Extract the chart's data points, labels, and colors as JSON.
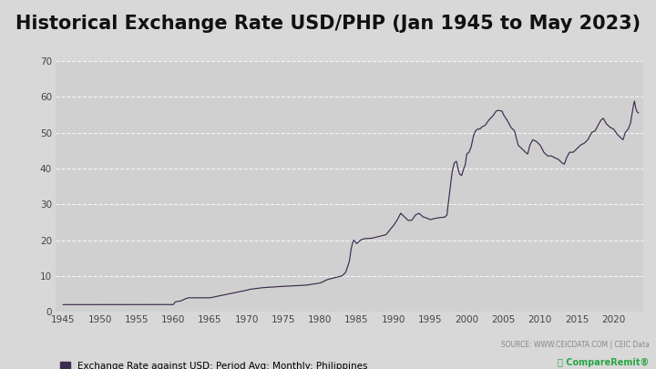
{
  "title": "Historical Exchange Rate USD/PHP (Jan 1945 to May 2023)",
  "title_fontsize": 15,
  "legend_label": "Exchange Rate against USD: Period Avg: Monthly: Philippines",
  "source_text": "SOURCE: WWW.CEICDATA.COM | CEIC Data",
  "line_color": "#3d2b4e",
  "background_color": "#d8d8d8",
  "plot_bg_color": "#d0d0d0",
  "ylim": [
    0,
    70
  ],
  "yticks": [
    0,
    10,
    20,
    30,
    40,
    50,
    60,
    70
  ],
  "xlim_start": 1944,
  "xlim_end": 2024,
  "xticks": [
    1945,
    1950,
    1955,
    1960,
    1965,
    1970,
    1975,
    1980,
    1985,
    1990,
    1995,
    2000,
    2005,
    2010,
    2015,
    2020
  ],
  "keypoints": [
    [
      1945.0,
      2.0
    ],
    [
      1959.5,
      2.0
    ],
    [
      1960.0,
      2.0
    ],
    [
      1960.3,
      2.8
    ],
    [
      1961.0,
      3.0
    ],
    [
      1961.5,
      3.5
    ],
    [
      1962.0,
      3.9
    ],
    [
      1964.5,
      3.9
    ],
    [
      1965.0,
      3.9
    ],
    [
      1970.0,
      6.0
    ],
    [
      1970.5,
      6.3
    ],
    [
      1972.0,
      6.7
    ],
    [
      1974.0,
      7.0
    ],
    [
      1976.0,
      7.2
    ],
    [
      1978.0,
      7.4
    ],
    [
      1979.0,
      7.7
    ],
    [
      1980.0,
      8.0
    ],
    [
      1981.0,
      9.0
    ],
    [
      1982.0,
      9.5
    ],
    [
      1983.0,
      10.0
    ],
    [
      1983.5,
      11.0
    ],
    [
      1984.0,
      14.0
    ],
    [
      1984.2,
      17.0
    ],
    [
      1984.4,
      19.0
    ],
    [
      1984.6,
      20.0
    ],
    [
      1984.8,
      19.5
    ],
    [
      1985.0,
      19.0
    ],
    [
      1985.5,
      20.0
    ],
    [
      1986.0,
      20.4
    ],
    [
      1987.0,
      20.5
    ],
    [
      1988.0,
      21.0
    ],
    [
      1989.0,
      21.5
    ],
    [
      1990.0,
      24.0
    ],
    [
      1990.5,
      25.5
    ],
    [
      1991.0,
      27.5
    ],
    [
      1991.5,
      26.5
    ],
    [
      1992.0,
      25.5
    ],
    [
      1992.5,
      25.5
    ],
    [
      1993.0,
      27.0
    ],
    [
      1993.5,
      27.5
    ],
    [
      1994.0,
      26.5
    ],
    [
      1994.5,
      26.2
    ],
    [
      1995.0,
      25.7
    ],
    [
      1995.5,
      26.0
    ],
    [
      1996.0,
      26.2
    ],
    [
      1996.5,
      26.3
    ],
    [
      1997.0,
      26.4
    ],
    [
      1997.3,
      27.0
    ],
    [
      1997.6,
      32.0
    ],
    [
      1998.0,
      39.0
    ],
    [
      1998.3,
      41.5
    ],
    [
      1998.6,
      42.0
    ],
    [
      1998.8,
      40.0
    ],
    [
      1999.0,
      38.5
    ],
    [
      1999.3,
      38.0
    ],
    [
      1999.6,
      40.0
    ],
    [
      1999.8,
      41.0
    ],
    [
      2000.0,
      44.0
    ],
    [
      2000.3,
      44.5
    ],
    [
      2000.6,
      46.0
    ],
    [
      2000.9,
      49.0
    ],
    [
      2001.2,
      50.5
    ],
    [
      2001.5,
      51.0
    ],
    [
      2001.8,
      51.0
    ],
    [
      2002.0,
      51.5
    ],
    [
      2002.5,
      52.0
    ],
    [
      2003.0,
      53.5
    ],
    [
      2003.5,
      54.5
    ],
    [
      2004.0,
      56.0
    ],
    [
      2004.3,
      56.2
    ],
    [
      2004.8,
      56.0
    ],
    [
      2005.0,
      55.0
    ],
    [
      2005.5,
      53.5
    ],
    [
      2006.0,
      51.5
    ],
    [
      2006.5,
      50.5
    ],
    [
      2007.0,
      46.5
    ],
    [
      2007.5,
      45.5
    ],
    [
      2008.0,
      44.5
    ],
    [
      2008.3,
      44.0
    ],
    [
      2008.6,
      46.5
    ],
    [
      2009.0,
      48.0
    ],
    [
      2009.5,
      47.5
    ],
    [
      2010.0,
      46.5
    ],
    [
      2010.5,
      44.5
    ],
    [
      2011.0,
      43.5
    ],
    [
      2011.5,
      43.5
    ],
    [
      2012.0,
      43.0
    ],
    [
      2012.5,
      42.5
    ],
    [
      2013.0,
      41.5
    ],
    [
      2013.3,
      41.2
    ],
    [
      2013.6,
      43.0
    ],
    [
      2014.0,
      44.5
    ],
    [
      2014.5,
      44.5
    ],
    [
      2015.0,
      45.5
    ],
    [
      2015.5,
      46.5
    ],
    [
      2016.0,
      47.0
    ],
    [
      2016.5,
      48.0
    ],
    [
      2017.0,
      50.0
    ],
    [
      2017.5,
      50.5
    ],
    [
      2018.0,
      52.5
    ],
    [
      2018.3,
      53.5
    ],
    [
      2018.6,
      54.0
    ],
    [
      2019.0,
      52.5
    ],
    [
      2019.5,
      51.5
    ],
    [
      2020.0,
      51.0
    ],
    [
      2020.5,
      49.5
    ],
    [
      2021.0,
      48.5
    ],
    [
      2021.3,
      48.0
    ],
    [
      2021.6,
      50.0
    ],
    [
      2022.0,
      51.0
    ],
    [
      2022.3,
      52.5
    ],
    [
      2022.5,
      55.0
    ],
    [
      2022.7,
      57.5
    ],
    [
      2022.85,
      58.8
    ],
    [
      2023.0,
      57.0
    ],
    [
      2023.2,
      55.8
    ],
    [
      2023.4,
      55.5
    ]
  ]
}
